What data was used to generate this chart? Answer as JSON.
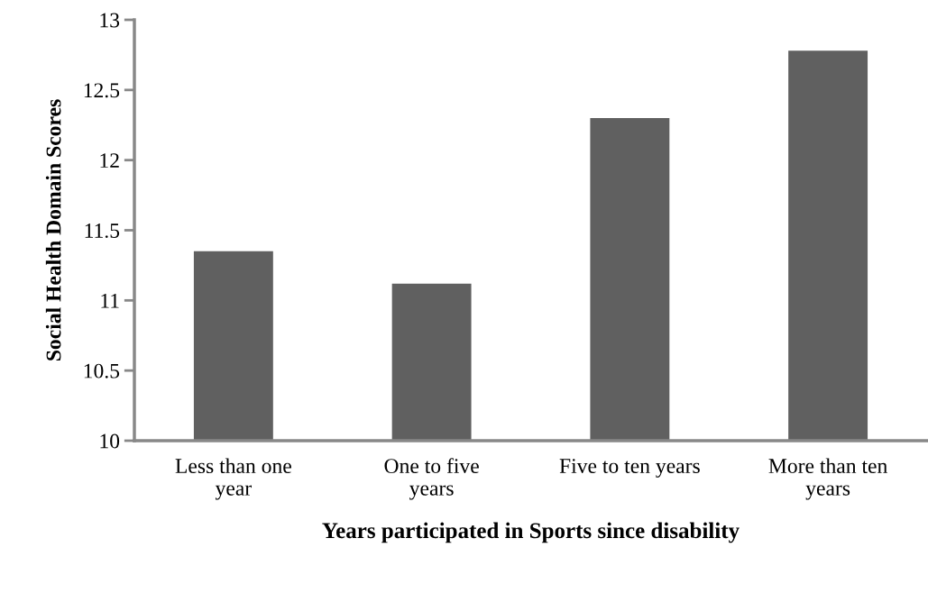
{
  "chart_data": {
    "type": "bar",
    "xlabel": "Years participated in Sports since disability",
    "ylabel": "Social Health Domain Scores",
    "categories": [
      "Less than one\nyear",
      "One to five\nyears",
      "Five to ten years",
      "More than ten\nyears"
    ],
    "values": [
      11.35,
      11.12,
      12.3,
      12.78
    ],
    "color": "#606060",
    "ylim": [
      10,
      13
    ],
    "yticks": [
      10,
      10.5,
      11,
      11.5,
      12,
      12.5,
      13
    ],
    "grid": false,
    "legend": false
  }
}
